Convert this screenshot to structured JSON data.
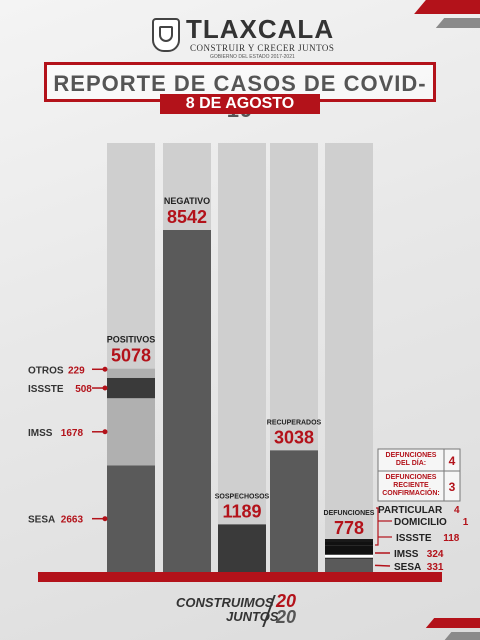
{
  "header": {
    "brand": "TLAXCALA",
    "tagline": "CONSTRUIR Y CRECER JUNTOS",
    "subline": "GOBIERNO DEL ESTADO 2017-2021"
  },
  "title": "REPORTE DE CASOS DE COVID-19",
  "date": "8 DE AGOSTO",
  "footer": {
    "line1": "CONSTRUIMOS",
    "line2": "JUNTOS",
    "year1": "20",
    "year2": "20"
  },
  "colors": {
    "accent": "#b3121a",
    "bar_dark": "#3a3a3a",
    "bar_mid": "#5a5a5a",
    "bar_light": "#b0b0b0",
    "background_column": "#cfcfcf"
  },
  "chart_data": {
    "type": "bar",
    "categories": [
      "POSITIVOS",
      "NEGATIVO",
      "SOSPECHOSOS",
      "RECUPERADOS",
      "DEFUNCIONES"
    ],
    "values": [
      5078,
      8542,
      1189,
      3038,
      778
    ],
    "ylim": [
      0,
      8542
    ],
    "grid": false,
    "positivos_breakdown": [
      {
        "name": "SESA",
        "value": 2663
      },
      {
        "name": "IMSS",
        "value": 1678
      },
      {
        "name": "ISSSTE",
        "value": 508
      },
      {
        "name": "OTROS",
        "value": 229
      }
    ],
    "defunciones_breakdown": [
      {
        "name": "SESA",
        "value": 331
      },
      {
        "name": "IMSS",
        "value": 324
      },
      {
        "name": "ISSSTE",
        "value": 118
      },
      {
        "name": "DOMICILIO",
        "value": 1
      },
      {
        "name": "PARTICULAR",
        "value": 4
      }
    ],
    "side_boxes": [
      {
        "line1": "DEFUNCIONES",
        "line2": "DEL DÍA:",
        "value": "4"
      },
      {
        "line1": "DEFUNCIONES",
        "line2": "RECIENTE",
        "line3": "CONFIRMACIÓN:",
        "value": "3"
      }
    ]
  }
}
